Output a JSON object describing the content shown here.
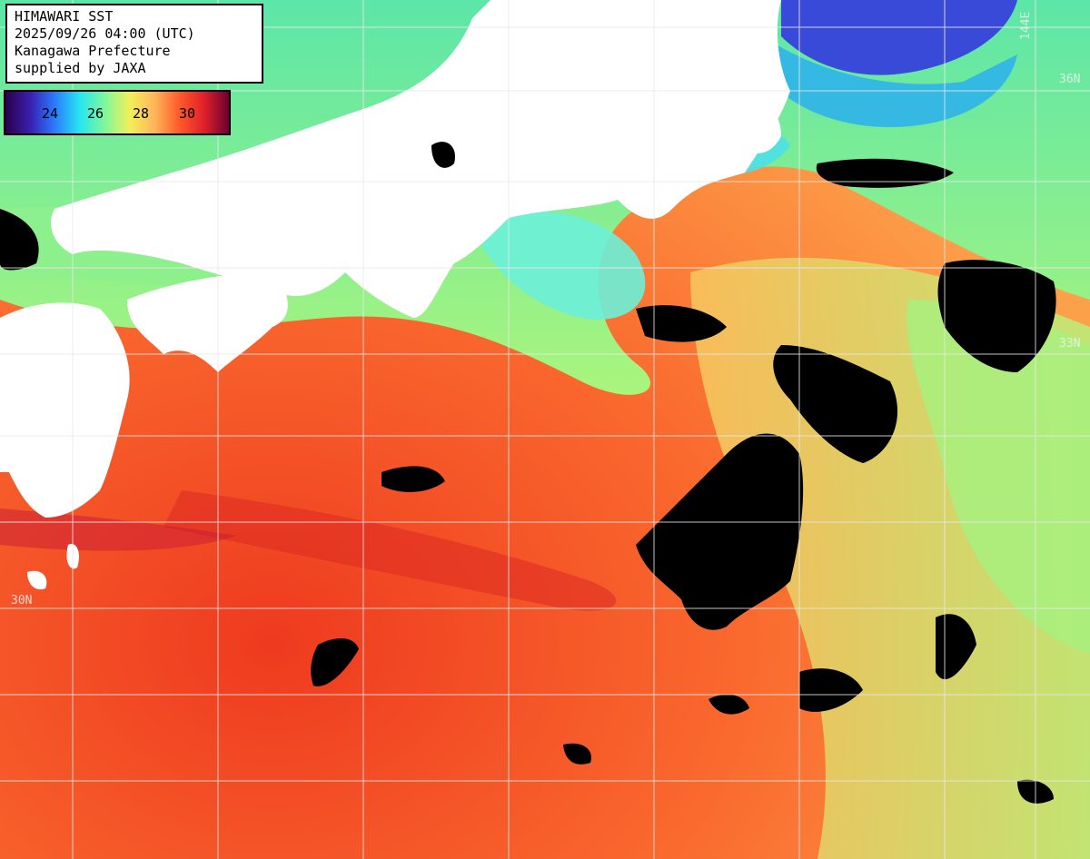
{
  "header": {
    "line1": "HIMAWARI SST",
    "line2": "2025/09/26 04:00 (UTC)",
    "line3": "Kanagawa Prefecture",
    "line4": "supplied by JAXA"
  },
  "legend": {
    "ticks": [
      "24",
      "26",
      "28",
      "30"
    ],
    "colors": [
      "#2a004a",
      "#3a1fb0",
      "#2a7cff",
      "#27e6f0",
      "#7ef79a",
      "#f2f05a",
      "#ffb55a",
      "#ff5a2a",
      "#e0202a",
      "#6a0030"
    ]
  },
  "grid_labels": {
    "lon_144": "144E",
    "lat_36": "36N",
    "lat_33": "33N",
    "lat_30": "30N"
  },
  "colors": {
    "land": "#ffffff",
    "no_data": "#000000",
    "grid": "#e8e8e8",
    "warm": "#ff6a33",
    "cool": "#7ef2a0"
  }
}
